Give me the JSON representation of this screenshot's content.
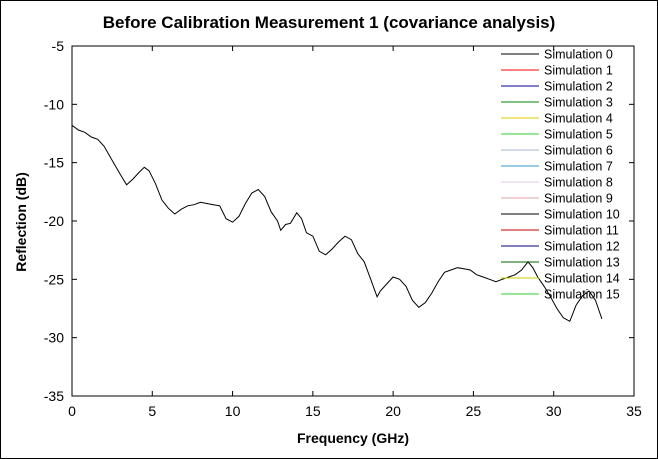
{
  "chart_data": {
    "type": "line",
    "title": "Before Calibration Measurement 1 (covariance analysis)",
    "xlabel": "Frequency (GHz)",
    "ylabel": "Reflection (dB)",
    "xlim": [
      0,
      35
    ],
    "ylim": [
      -35,
      -5
    ],
    "x_ticks": [
      0,
      5,
      10,
      15,
      20,
      25,
      30,
      35
    ],
    "y_ticks": [
      -5,
      -10,
      -15,
      -20,
      -25,
      -30,
      -35
    ],
    "grid": false,
    "legend_position": "top-right",
    "legend": [
      {
        "name": "Simulation 0",
        "color": "#000000"
      },
      {
        "name": "Simulation 1",
        "color": "#ff0000"
      },
      {
        "name": "Simulation 2",
        "color": "#00008b"
      },
      {
        "name": "Simulation 3",
        "color": "#008000"
      },
      {
        "name": "Simulation 4",
        "color": "#e8c800"
      },
      {
        "name": "Simulation 5",
        "color": "#33cc33"
      },
      {
        "name": "Simulation 6",
        "color": "#a0b4d0"
      },
      {
        "name": "Simulation 7",
        "color": "#3399cc"
      },
      {
        "name": "Simulation 8",
        "color": "#e0c8e0"
      },
      {
        "name": "Simulation 9",
        "color": "#e0a0a0"
      },
      {
        "name": "Simulation 10",
        "color": "#000000"
      },
      {
        "name": "Simulation 11",
        "color": "#cc0000"
      },
      {
        "name": "Simulation 12",
        "color": "#000080"
      },
      {
        "name": "Simulation 13",
        "color": "#006400"
      },
      {
        "name": "Simulation 14",
        "color": "#cccc00"
      },
      {
        "name": "Simulation 15",
        "color": "#33cc33"
      }
    ],
    "series": [
      {
        "color": "#000000",
        "x": [
          0,
          0.4,
          0.8,
          1.2,
          1.6,
          2.0,
          2.5,
          3.0,
          3.4,
          3.8,
          4.2,
          4.5,
          4.8,
          5.2,
          5.6,
          6.0,
          6.4,
          6.8,
          7.2,
          7.6,
          8.0,
          8.4,
          8.8,
          9.2,
          9.6,
          10.0,
          10.4,
          10.8,
          11.2,
          11.6,
          12.0,
          12.4,
          12.8,
          13.0,
          13.3,
          13.6,
          14.0,
          14.3,
          14.6,
          15.0,
          15.4,
          15.8,
          16.2,
          16.6,
          17.0,
          17.4,
          17.8,
          18.2,
          18.6,
          19.0,
          19.2,
          19.6,
          20.0,
          20.4,
          20.8,
          21.2,
          21.6,
          22.0,
          22.4,
          22.8,
          23.2,
          23.6,
          24.0,
          24.4,
          24.8,
          25.2,
          25.6,
          26.0,
          26.4,
          26.8,
          27.2,
          27.6,
          28.0,
          28.4,
          28.7,
          29.0,
          29.4,
          29.8,
          30.2,
          30.6,
          31.0,
          31.4,
          31.8,
          32.2,
          32.6,
          33.0
        ],
        "y": [
          -11.8,
          -12.2,
          -12.4,
          -12.8,
          -13.0,
          -13.6,
          -14.8,
          -16.0,
          -16.9,
          -16.4,
          -15.8,
          -15.4,
          -15.7,
          -16.8,
          -18.2,
          -18.9,
          -19.4,
          -19.0,
          -18.7,
          -18.6,
          -18.4,
          -18.5,
          -18.6,
          -18.7,
          -19.8,
          -20.1,
          -19.6,
          -18.5,
          -17.6,
          -17.3,
          -17.9,
          -19.2,
          -20.0,
          -20.8,
          -20.3,
          -20.2,
          -19.3,
          -19.8,
          -21.0,
          -21.3,
          -22.6,
          -22.9,
          -22.4,
          -21.8,
          -21.3,
          -21.6,
          -22.8,
          -23.5,
          -25.0,
          -26.5,
          -26.0,
          -25.4,
          -24.8,
          -25.0,
          -25.6,
          -26.8,
          -27.4,
          -27.0,
          -26.2,
          -25.2,
          -24.4,
          -24.2,
          -24.0,
          -24.1,
          -24.2,
          -24.6,
          -24.8,
          -25.0,
          -25.2,
          -25.0,
          -24.8,
          -24.6,
          -24.2,
          -23.5,
          -24.0,
          -24.8,
          -25.6,
          -26.5,
          -27.5,
          -28.3,
          -28.6,
          -27.2,
          -26.4,
          -26.0,
          -26.8,
          -28.4
        ]
      }
    ]
  }
}
